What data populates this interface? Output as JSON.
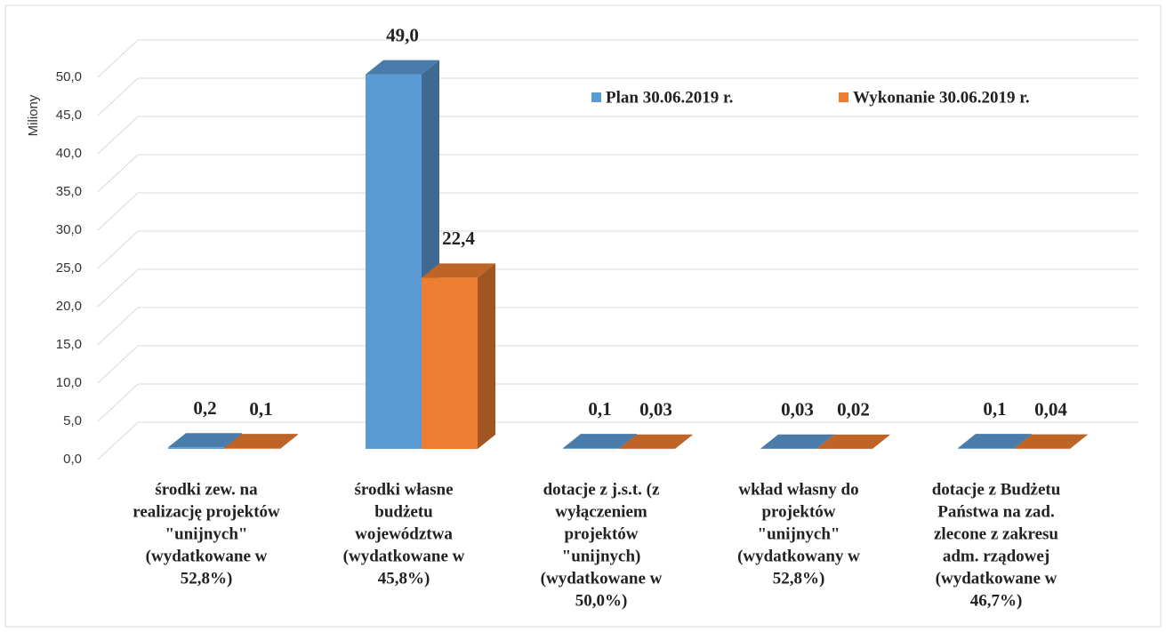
{
  "chart_data": {
    "type": "bar3d",
    "y_axis_label": "Miliony",
    "categories": [
      [
        "środki zew. na",
        "realizację projektów",
        "\"unijnych\"",
        "(wydatkowane w",
        "52,8%)"
      ],
      [
        "środki własne",
        "budżetu",
        "województwa",
        "(wydatkowane w",
        "45,8%)"
      ],
      [
        "dotacje z j.s.t. (z",
        "wyłączeniem",
        "projektów",
        "\"unijnych)",
        "(wydatkowane w",
        "50,0%)"
      ],
      [
        "wkład własny do",
        "projektów",
        "\"unijnych\"",
        "(wydatkowany w",
        "52,8%)"
      ],
      [
        "dotacje z Budżetu",
        "Państwa na zad.",
        "zlecone z zakresu",
        "adm. rządowej",
        "(wydatkowane w",
        "46,7%)"
      ]
    ],
    "series": [
      {
        "name": "Plan 30.06.2019 r.",
        "color": "#5b9bd5",
        "values": [
          0.2,
          49.0,
          0.1,
          0.03,
          0.1
        ],
        "value_labels": [
          "0,2",
          "49,0",
          "0,1",
          "0,03",
          "0,1"
        ]
      },
      {
        "name": "Wykonanie 30.06.2019 r.",
        "color": "#ed7d31",
        "values": [
          0.1,
          22.4,
          0.03,
          0.02,
          0.04
        ],
        "value_labels": [
          "0,1",
          "22,4",
          "0,03",
          "0,02",
          "0,04"
        ]
      }
    ],
    "ylim": [
      0,
      50
    ],
    "yticks": [
      {
        "value": 0,
        "label": "0,0"
      },
      {
        "value": 5,
        "label": "5,0"
      },
      {
        "value": 10,
        "label": "10,0"
      },
      {
        "value": 15,
        "label": "15,0"
      },
      {
        "value": 20,
        "label": "20,0"
      },
      {
        "value": 25,
        "label": "25,0"
      },
      {
        "value": 30,
        "label": "30,0"
      },
      {
        "value": 35,
        "label": "35,0"
      },
      {
        "value": 40,
        "label": "40,0"
      },
      {
        "value": 45,
        "label": "45,0"
      },
      {
        "value": 50,
        "label": "50,0"
      }
    ],
    "grid": true,
    "legend": "top-right"
  }
}
